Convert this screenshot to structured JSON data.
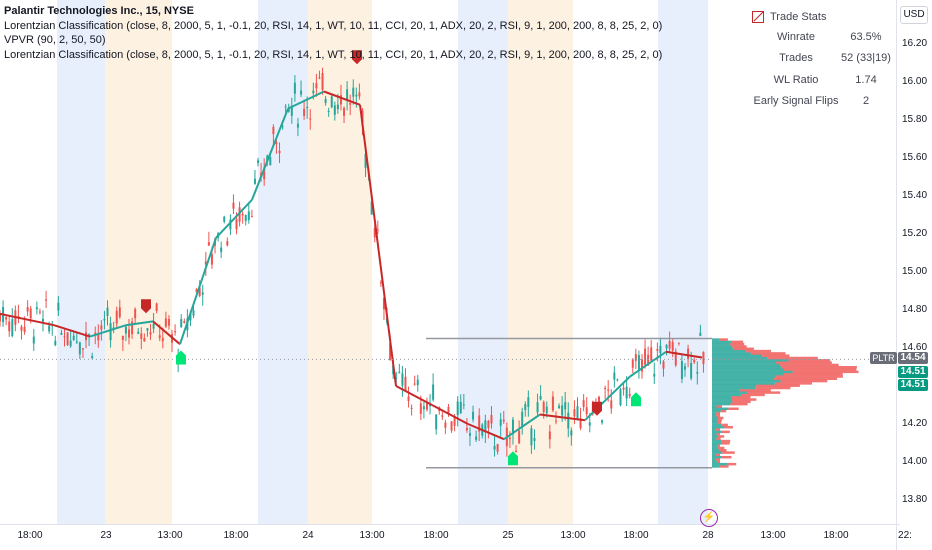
{
  "chart": {
    "symbol_title": "Palantir Technologies Inc., 15, NYSE",
    "indicators": [
      "Lorentzian Classification (close, 8, 2000, 5, 1, -0.1, 20, RSI, 14, 1, WT, 10, 11, CCI, 20, 1, ADX, 20, 2, RSI, 9, 1, 200, 200, 8, 8, 25, 2, 0)",
      "VPVR (90, 2, 50, 50)",
      "Lorentzian Classification (close, 8, 2000, 5, 1, -0.1, 20, RSI, 14, 1, WT, 10, 11, CCI, 20, 1, ADX, 20, 2, RSI, 9, 1, 200, 200, 8, 8, 25, 2, 0)"
    ],
    "currency": "USD",
    "price_axis": [
      "16.20",
      "16.00",
      "15.80",
      "15.60",
      "15.40",
      "15.20",
      "15.00",
      "14.80",
      "14.60",
      "14.20",
      "14.00",
      "13.80"
    ],
    "time_axis": [
      "18:00",
      "23",
      "13:00",
      "18:00",
      "24",
      "13:00",
      "18:00",
      "25",
      "13:00",
      "18:00",
      "28",
      "13:00",
      "18:00",
      "22:"
    ],
    "price_tags": {
      "symbol": "PLTR",
      "last": "14.54",
      "tag2": "14.51",
      "tag3": "14.51"
    },
    "colors": {
      "up": "#26a69a",
      "down": "#ef5350",
      "kernel_up": "#26a69a",
      "kernel_down": "#c62828",
      "buy": "#00e676",
      "sell": "#c62828",
      "session_blue": "#e8effc",
      "session_orange": "#fdf1e1"
    },
    "icons": {
      "alert": "lightning-icon",
      "stats_toggle": "checkbox-icon"
    }
  },
  "trade_stats": {
    "title": "Trade Stats",
    "rows": [
      {
        "label": "Winrate",
        "value": "63.5%"
      },
      {
        "label": "Trades",
        "value": "52 (33|19)"
      },
      {
        "label": "WL Ratio",
        "value": "1.74"
      },
      {
        "label": "Early Signal Flips",
        "value": "2"
      }
    ]
  },
  "chart_data": {
    "type": "candlestick",
    "title": "Palantir Technologies Inc., 15, NYSE",
    "ylim": [
      13.7,
      16.3
    ],
    "kernel_line": [
      {
        "t": 0,
        "price": 14.78
      },
      {
        "t": 0.06,
        "price": 14.72
      },
      {
        "t": 0.1,
        "price": 14.66
      },
      {
        "t": 0.14,
        "price": 14.72
      },
      {
        "t": 0.17,
        "price": 14.74
      },
      {
        "t": 0.2,
        "price": 14.62
      },
      {
        "t": 0.24,
        "price": 15.18
      },
      {
        "t": 0.28,
        "price": 15.38
      },
      {
        "t": 0.32,
        "price": 15.86
      },
      {
        "t": 0.36,
        "price": 15.95
      },
      {
        "t": 0.4,
        "price": 15.88
      },
      {
        "t": 0.44,
        "price": 14.4
      },
      {
        "t": 0.48,
        "price": 14.3
      },
      {
        "t": 0.52,
        "price": 14.2
      },
      {
        "t": 0.56,
        "price": 14.12
      },
      {
        "t": 0.6,
        "price": 14.25
      },
      {
        "t": 0.65,
        "price": 14.22
      },
      {
        "t": 0.7,
        "price": 14.45
      },
      {
        "t": 0.74,
        "price": 14.58
      },
      {
        "t": 0.78,
        "price": 14.55
      }
    ],
    "volume_profile_range": [
      13.97,
      14.65
    ]
  }
}
